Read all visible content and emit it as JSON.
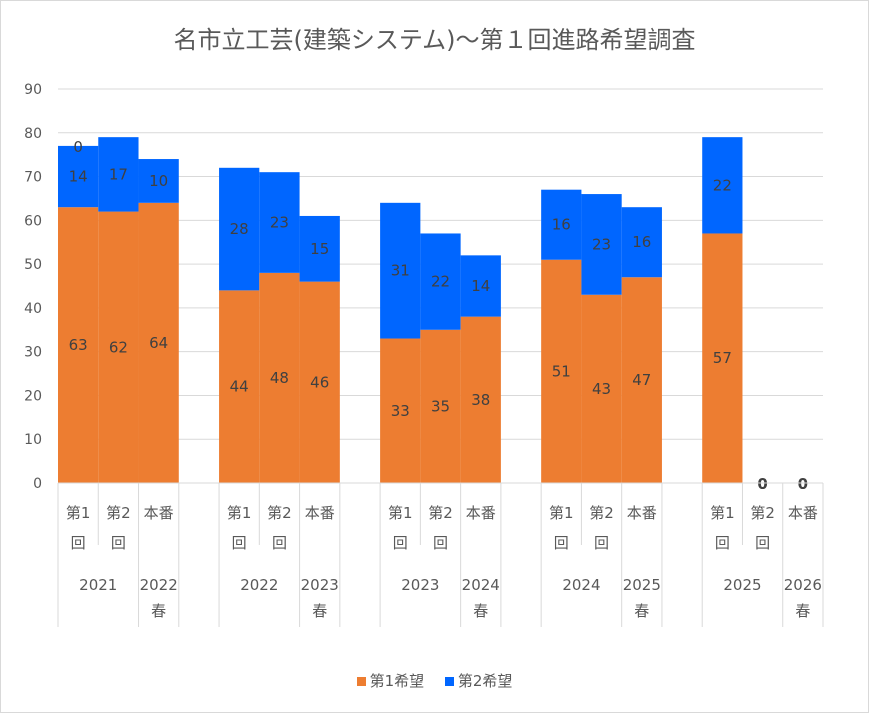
{
  "chart_data": {
    "type": "bar",
    "stacked": true,
    "title": "名市立工芸(建築システム)～第１回進路希望調査",
    "ylim": [
      0,
      90
    ],
    "yticks": [
      0,
      10,
      20,
      30,
      40,
      50,
      60,
      70,
      80,
      90
    ],
    "grid": true,
    "legend_position": "bottom",
    "groups": [
      {
        "label": "2021",
        "categories": [
          {
            "label": [
              "第1",
              "回"
            ],
            "first": 63,
            "second": 14,
            "zero_label": "0"
          },
          {
            "label": [
              "第2",
              "回"
            ],
            "first": 62,
            "second": 17
          }
        ]
      },
      {
        "label": [
          "2022",
          "春"
        ],
        "categories": [
          {
            "label": [
              "本番"
            ],
            "first": 64,
            "second": 10
          }
        ]
      },
      {
        "label": "2022",
        "categories": [
          {
            "label": [
              "第1",
              "回"
            ],
            "first": 44,
            "second": 28
          },
          {
            "label": [
              "第2",
              "回"
            ],
            "first": 48,
            "second": 23
          }
        ]
      },
      {
        "label": [
          "2023",
          "春"
        ],
        "categories": [
          {
            "label": [
              "本番"
            ],
            "first": 46,
            "second": 15
          }
        ]
      },
      {
        "label": "2023",
        "categories": [
          {
            "label": [
              "第1",
              "回"
            ],
            "first": 33,
            "second": 31
          },
          {
            "label": [
              "第2",
              "回"
            ],
            "first": 35,
            "second": 22
          }
        ]
      },
      {
        "label": [
          "2024",
          "春"
        ],
        "categories": [
          {
            "label": [
              "本番"
            ],
            "first": 38,
            "second": 14
          }
        ]
      },
      {
        "label": "2024",
        "categories": [
          {
            "label": [
              "第1",
              "回"
            ],
            "first": 51,
            "second": 16
          },
          {
            "label": [
              "第2",
              "回"
            ],
            "first": 43,
            "second": 23
          }
        ]
      },
      {
        "label": [
          "2025",
          "春"
        ],
        "categories": [
          {
            "label": [
              "本番"
            ],
            "first": 47,
            "second": 16
          }
        ]
      },
      {
        "label": "2025",
        "categories": [
          {
            "label": [
              "第1",
              "回"
            ],
            "first": 57,
            "second": 22
          },
          {
            "label": [
              "第2",
              "回"
            ],
            "first": 0,
            "second": 0
          }
        ]
      },
      {
        "label": [
          "2026",
          "春"
        ],
        "categories": [
          {
            "label": [
              "本番"
            ],
            "first": 0,
            "second": 0
          }
        ]
      }
    ],
    "series": [
      {
        "name": "第1希望",
        "key": "first",
        "color": "#ed7d31"
      },
      {
        "name": "第2希望",
        "key": "second",
        "color": "#0066ff"
      }
    ]
  }
}
